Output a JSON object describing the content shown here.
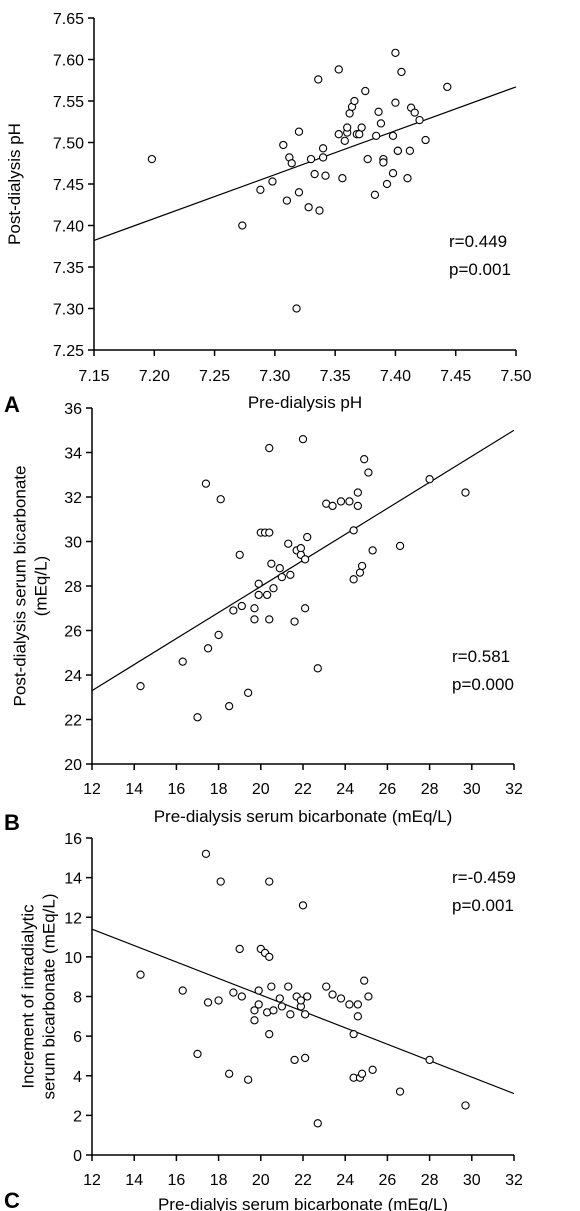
{
  "chart_data": [
    {
      "type": "scatter",
      "panel_label": "A",
      "xlabel": "Pre-dialysis pH",
      "ylabel": "Post-dialysis pH",
      "xlim": [
        7.15,
        7.5
      ],
      "ylim": [
        7.25,
        7.65
      ],
      "xticks": [
        "7.15",
        "7.20",
        "7.25",
        "7.30",
        "7.35",
        "7.40",
        "7.45",
        "7.50"
      ],
      "yticks": [
        "7.25",
        "7.30",
        "7.35",
        "7.40",
        "7.45",
        "7.50",
        "7.55",
        "7.60",
        "7.65"
      ],
      "annotation": [
        "r=0.449",
        "p=0.001"
      ],
      "grid": false,
      "fit_line": [
        [
          7.15,
          7.382
        ],
        [
          7.5,
          7.567
        ]
      ],
      "points": [
        [
          7.198,
          7.48
        ],
        [
          7.273,
          7.4
        ],
        [
          7.288,
          7.443
        ],
        [
          7.298,
          7.453
        ],
        [
          7.307,
          7.497
        ],
        [
          7.31,
          7.43
        ],
        [
          7.312,
          7.482
        ],
        [
          7.314,
          7.475
        ],
        [
          7.318,
          7.3
        ],
        [
          7.32,
          7.513
        ],
        [
          7.32,
          7.44
        ],
        [
          7.328,
          7.422
        ],
        [
          7.33,
          7.48
        ],
        [
          7.333,
          7.462
        ],
        [
          7.336,
          7.576
        ],
        [
          7.337,
          7.418
        ],
        [
          7.34,
          7.482
        ],
        [
          7.34,
          7.493
        ],
        [
          7.342,
          7.46
        ],
        [
          7.353,
          7.588
        ],
        [
          7.356,
          7.457
        ],
        [
          7.358,
          7.502
        ],
        [
          7.36,
          7.512
        ],
        [
          7.36,
          7.518
        ],
        [
          7.362,
          7.535
        ],
        [
          7.364,
          7.543
        ],
        [
          7.366,
          7.55
        ],
        [
          7.368,
          7.51
        ],
        [
          7.37,
          7.51
        ],
        [
          7.372,
          7.518
        ],
        [
          7.375,
          7.562
        ],
        [
          7.377,
          7.48
        ],
        [
          7.383,
          7.437
        ],
        [
          7.384,
          7.508
        ],
        [
          7.386,
          7.537
        ],
        [
          7.388,
          7.523
        ],
        [
          7.39,
          7.48
        ],
        [
          7.39,
          7.476
        ],
        [
          7.393,
          7.45
        ],
        [
          7.398,
          7.463
        ],
        [
          7.4,
          7.608
        ],
        [
          7.4,
          7.548
        ],
        [
          7.402,
          7.49
        ],
        [
          7.398,
          7.508
        ],
        [
          7.405,
          7.585
        ],
        [
          7.41,
          7.457
        ],
        [
          7.413,
          7.542
        ],
        [
          7.412,
          7.49
        ],
        [
          7.416,
          7.536
        ],
        [
          7.42,
          7.527
        ],
        [
          7.425,
          7.503
        ],
        [
          7.443,
          7.567
        ],
        [
          7.402,
          7.49
        ],
        [
          7.353,
          7.51
        ]
      ]
    },
    {
      "type": "scatter",
      "panel_label": "B",
      "xlabel": "Pre-dialysis serum bicarbonate (mEq/L)",
      "ylabel": [
        "Post-dialysis serum bicarbonate",
        "(mEq/L)"
      ],
      "xlim": [
        12,
        32
      ],
      "ylim": [
        20,
        36
      ],
      "xticks": [
        "12",
        "14",
        "16",
        "18",
        "20",
        "22",
        "24",
        "26",
        "28",
        "30",
        "32"
      ],
      "yticks": [
        "20",
        "22",
        "24",
        "26",
        "28",
        "30",
        "32",
        "34",
        "36"
      ],
      "annotation": [
        "r=0.581",
        "p=0.000"
      ],
      "grid": false,
      "fit_line": [
        [
          12,
          23.3
        ],
        [
          32,
          35.0
        ]
      ],
      "points": [
        [
          14.3,
          23.5
        ],
        [
          16.3,
          24.6
        ],
        [
          17.0,
          22.1
        ],
        [
          17.4,
          32.6
        ],
        [
          17.5,
          25.2
        ],
        [
          18.0,
          25.8
        ],
        [
          18.1,
          31.9
        ],
        [
          18.5,
          22.6
        ],
        [
          18.7,
          26.9
        ],
        [
          19.0,
          29.4
        ],
        [
          19.1,
          27.1
        ],
        [
          19.4,
          23.2
        ],
        [
          19.7,
          27.0
        ],
        [
          19.7,
          26.5
        ],
        [
          19.9,
          28.1
        ],
        [
          19.9,
          27.6
        ],
        [
          20.0,
          30.4
        ],
        [
          20.2,
          30.4
        ],
        [
          20.4,
          34.2
        ],
        [
          20.4,
          30.4
        ],
        [
          20.3,
          27.6
        ],
        [
          20.4,
          26.5
        ],
        [
          20.5,
          29.0
        ],
        [
          20.6,
          27.9
        ],
        [
          20.9,
          28.8
        ],
        [
          21.0,
          28.4
        ],
        [
          21.3,
          29.9
        ],
        [
          21.4,
          28.5
        ],
        [
          21.6,
          26.4
        ],
        [
          21.7,
          29.6
        ],
        [
          21.9,
          29.7
        ],
        [
          21.9,
          29.4
        ],
        [
          22.0,
          34.6
        ],
        [
          22.1,
          27.0
        ],
        [
          22.1,
          29.2
        ],
        [
          22.2,
          30.2
        ],
        [
          22.7,
          24.3
        ],
        [
          23.1,
          31.7
        ],
        [
          23.4,
          31.6
        ],
        [
          23.8,
          31.8
        ],
        [
          24.2,
          31.8
        ],
        [
          24.4,
          30.5
        ],
        [
          24.4,
          28.3
        ],
        [
          24.6,
          32.2
        ],
        [
          24.6,
          31.6
        ],
        [
          24.7,
          28.6
        ],
        [
          24.8,
          28.9
        ],
        [
          24.9,
          33.7
        ],
        [
          25.1,
          33.1
        ],
        [
          25.3,
          29.6
        ],
        [
          26.6,
          29.8
        ],
        [
          28.0,
          32.8
        ],
        [
          29.7,
          32.2
        ]
      ]
    },
    {
      "type": "scatter",
      "panel_label": "C",
      "xlabel": "Pre-dialyis serum bicarbonate (mEq/L)",
      "ylabel": [
        "Increment of intradialytic",
        "serum bicarbonate (mEq/L)"
      ],
      "xlim": [
        12,
        32
      ],
      "ylim": [
        0,
        16
      ],
      "xticks": [
        "12",
        "14",
        "16",
        "18",
        "20",
        "22",
        "24",
        "26",
        "28",
        "30",
        "32"
      ],
      "yticks": [
        "0",
        "2",
        "4",
        "6",
        "8",
        "10",
        "12",
        "14",
        "16"
      ],
      "annotation": [
        "r=-0.459",
        "p=0.001"
      ],
      "grid": false,
      "fit_line": [
        [
          12,
          11.4
        ],
        [
          32,
          3.1
        ]
      ],
      "points": [
        [
          14.3,
          9.1
        ],
        [
          16.3,
          8.3
        ],
        [
          17.0,
          5.1
        ],
        [
          17.4,
          15.2
        ],
        [
          17.5,
          7.7
        ],
        [
          18.0,
          7.8
        ],
        [
          18.1,
          13.8
        ],
        [
          18.5,
          4.1
        ],
        [
          18.7,
          8.2
        ],
        [
          19.0,
          10.4
        ],
        [
          19.1,
          8.0
        ],
        [
          19.4,
          3.8
        ],
        [
          19.7,
          7.3
        ],
        [
          19.7,
          6.8
        ],
        [
          19.9,
          8.3
        ],
        [
          19.9,
          7.6
        ],
        [
          20.0,
          10.4
        ],
        [
          20.2,
          10.2
        ],
        [
          20.4,
          13.8
        ],
        [
          20.4,
          10.0
        ],
        [
          20.3,
          7.2
        ],
        [
          20.4,
          6.1
        ],
        [
          20.5,
          8.5
        ],
        [
          20.6,
          7.3
        ],
        [
          20.9,
          7.9
        ],
        [
          21.0,
          7.5
        ],
        [
          21.3,
          8.5
        ],
        [
          21.4,
          7.1
        ],
        [
          21.6,
          4.8
        ],
        [
          21.7,
          8.0
        ],
        [
          21.9,
          7.5
        ],
        [
          21.9,
          7.8
        ],
        [
          22.0,
          12.6
        ],
        [
          22.1,
          4.9
        ],
        [
          22.1,
          7.1
        ],
        [
          22.2,
          8.0
        ],
        [
          22.7,
          1.6
        ],
        [
          23.1,
          8.5
        ],
        [
          23.4,
          8.1
        ],
        [
          23.8,
          7.9
        ],
        [
          24.2,
          7.6
        ],
        [
          24.4,
          6.1
        ],
        [
          24.4,
          3.9
        ],
        [
          24.6,
          7.6
        ],
        [
          24.6,
          7.0
        ],
        [
          24.7,
          3.9
        ],
        [
          24.8,
          4.1
        ],
        [
          24.9,
          8.8
        ],
        [
          25.1,
          8.0
        ],
        [
          25.3,
          4.3
        ],
        [
          26.6,
          3.2
        ],
        [
          28.0,
          4.8
        ],
        [
          29.7,
          2.5
        ]
      ]
    }
  ]
}
